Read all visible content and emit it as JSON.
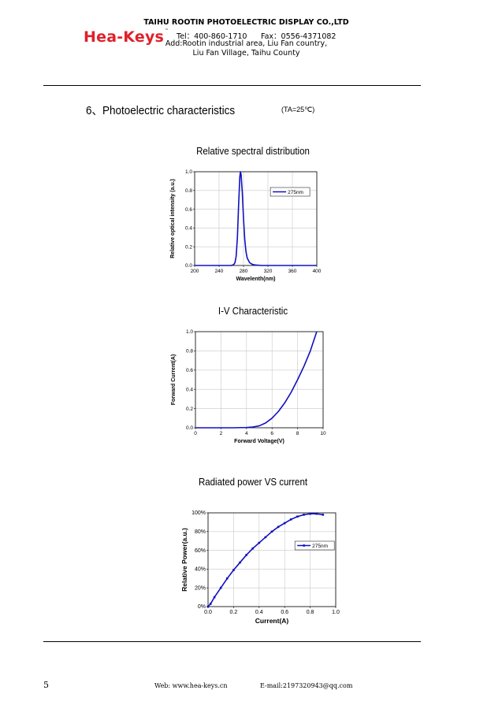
{
  "header": {
    "logo": "Hea-Keys",
    "logo_tm": "™",
    "company": "TAIHU ROOTIN PHOTOELECTRIC DISPLAY CO.,LTD",
    "tel": "Tel：400-860-1710",
    "fax": "Fax：0556-4371082",
    "address_line1": "Add:Rootin industrial area, Liu Fan country,",
    "address_line2": "Liu Fan Village, Taihu County"
  },
  "section": {
    "title": "6、Photoelectric characteristics",
    "condition": "(TA=25℃)"
  },
  "chart_data": [
    {
      "type": "line",
      "title": "Relative spectral distribution",
      "xlabel": "Wavelenth(nm)",
      "ylabel": "Relative optical intensity (a.u.)",
      "xlim": [
        200,
        400
      ],
      "ylim": [
        0,
        1.0
      ],
      "xticks": [
        "200",
        "240",
        "280",
        "320",
        "360",
        "400"
      ],
      "yticks": [
        "0.0",
        "0.2",
        "0.4",
        "0.6",
        "0.8",
        "1.0"
      ],
      "grid": true,
      "legend": "top-right",
      "series": [
        {
          "name": "275nm",
          "color": "#1010c0",
          "x": [
            200,
            260,
            264,
            266,
            268,
            270,
            272,
            274,
            275,
            276,
            278,
            280,
            282,
            284,
            286,
            290,
            295,
            300,
            310,
            400
          ],
          "y": [
            0,
            0,
            0.01,
            0.03,
            0.1,
            0.3,
            0.65,
            0.95,
            1.0,
            0.97,
            0.78,
            0.5,
            0.28,
            0.15,
            0.08,
            0.03,
            0.01,
            0.005,
            0,
            0
          ]
        }
      ]
    },
    {
      "type": "line",
      "title": "I-V Characteristic",
      "xlabel": "Forward Voltage(V)",
      "ylabel": "Forward Current(A)",
      "xlim": [
        0,
        10
      ],
      "ylim": [
        0,
        1.0
      ],
      "xticks": [
        "0",
        "2",
        "4",
        "6",
        "8",
        "10"
      ],
      "yticks": [
        "0.0",
        "0.2",
        "0.4",
        "0.6",
        "0.8",
        "1.0"
      ],
      "grid": true,
      "series": [
        {
          "color": "#1010c0",
          "x": [
            0,
            3,
            4,
            4.5,
            5,
            5.5,
            6,
            6.5,
            7,
            7.5,
            8,
            8.5,
            9,
            9.5
          ],
          "y": [
            0,
            0,
            0.003,
            0.008,
            0.02,
            0.05,
            0.1,
            0.17,
            0.26,
            0.37,
            0.5,
            0.64,
            0.8,
            1.0
          ]
        }
      ]
    },
    {
      "type": "line",
      "title": "Radiated power VS current",
      "xlabel": "Current(A)",
      "ylabel": "Relative Power(a.u.)",
      "xlim": [
        0,
        1.0
      ],
      "ylim": [
        0,
        100
      ],
      "xticks": [
        "0.0",
        "0.2",
        "0.4",
        "0.6",
        "0.8",
        "1.0"
      ],
      "yticks": [
        "0%",
        "20%",
        "40%",
        "60%",
        "80%",
        "100%"
      ],
      "grid": true,
      "legend": "right",
      "series": [
        {
          "name": "275nm",
          "color": "#1010c0",
          "x": [
            0,
            0.02,
            0.05,
            0.1,
            0.15,
            0.2,
            0.25,
            0.3,
            0.35,
            0.4,
            0.45,
            0.5,
            0.55,
            0.6,
            0.65,
            0.7,
            0.75,
            0.8,
            0.85,
            0.9
          ],
          "y": [
            0,
            3,
            10,
            20,
            30,
            39,
            47,
            55,
            62,
            68,
            74,
            80,
            85,
            89,
            93,
            96,
            98,
            99,
            99,
            98
          ]
        }
      ]
    }
  ],
  "footer": {
    "page_number": "5",
    "web": "Web:  www.hea-keys.cn",
    "email": "E-mail:2197320943@qq.com"
  }
}
